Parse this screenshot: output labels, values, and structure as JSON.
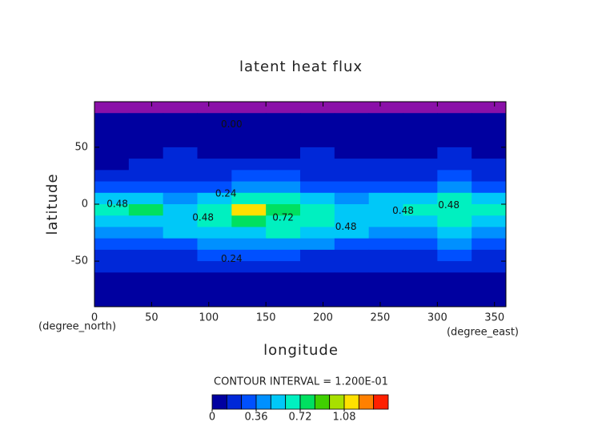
{
  "chart_data": {
    "type": "contour",
    "title": "latent heat flux",
    "x_label": "longitude",
    "y_label": "latitude",
    "x_units": "(degree_east)",
    "y_units": "(degree_north)",
    "note": "CONTOUR INTERVAL = 1.200E-01",
    "xlim": [
      0,
      360
    ],
    "ylim": [
      -90,
      90
    ],
    "xticks": [
      0,
      50,
      100,
      150,
      200,
      250,
      300,
      350
    ],
    "yticks": [
      -50,
      0,
      50
    ],
    "x": [
      15,
      45,
      75,
      105,
      135,
      165,
      195,
      225,
      255,
      285,
      315,
      345
    ],
    "y": [
      85,
      75,
      65,
      55,
      45,
      35,
      25,
      15,
      5,
      -5,
      -15,
      -25,
      -35,
      -45,
      -55,
      -65,
      -75,
      -85
    ],
    "z": [
      [
        -0.02,
        -0.02,
        -0.02,
        -0.02,
        -0.02,
        -0.02,
        -0.02,
        -0.02,
        -0.02,
        -0.02,
        -0.02,
        -0.02
      ],
      [
        0.03,
        0.02,
        0.04,
        0.05,
        0.05,
        0.04,
        0.03,
        0.04,
        0.05,
        0.02,
        0.03,
        0.04
      ],
      [
        0.06,
        0.07,
        0.08,
        0.09,
        0.08,
        0.07,
        0.08,
        0.09,
        0.08,
        0.07,
        0.06,
        0.07
      ],
      [
        0.09,
        0.1,
        0.11,
        0.1,
        0.09,
        0.1,
        0.11,
        0.1,
        0.09,
        0.1,
        0.11,
        0.1
      ],
      [
        0.1,
        0.11,
        0.12,
        0.11,
        0.1,
        0.11,
        0.12,
        0.11,
        0.1,
        0.11,
        0.12,
        0.11
      ],
      [
        0.11,
        0.13,
        0.14,
        0.15,
        0.16,
        0.14,
        0.13,
        0.15,
        0.13,
        0.12,
        0.14,
        0.13
      ],
      [
        0.2,
        0.22,
        0.18,
        0.2,
        0.26,
        0.25,
        0.22,
        0.2,
        0.19,
        0.22,
        0.25,
        0.23
      ],
      [
        0.3,
        0.34,
        0.28,
        0.33,
        0.38,
        0.36,
        0.32,
        0.3,
        0.29,
        0.33,
        0.37,
        0.35
      ],
      [
        0.52,
        0.58,
        0.45,
        0.55,
        0.65,
        0.62,
        0.5,
        0.46,
        0.49,
        0.55,
        0.6,
        0.57
      ],
      [
        0.6,
        0.74,
        0.55,
        0.7,
        1.1,
        0.8,
        0.62,
        0.54,
        0.58,
        0.66,
        0.7,
        0.64
      ],
      [
        0.5,
        0.56,
        0.52,
        0.62,
        0.75,
        0.7,
        0.6,
        0.55,
        0.52,
        0.58,
        0.62,
        0.55
      ],
      [
        0.42,
        0.46,
        0.48,
        0.52,
        0.58,
        0.6,
        0.55,
        0.5,
        0.44,
        0.46,
        0.48,
        0.45
      ],
      [
        0.3,
        0.32,
        0.34,
        0.38,
        0.4,
        0.38,
        0.36,
        0.34,
        0.3,
        0.28,
        0.36,
        0.32
      ],
      [
        0.2,
        0.18,
        0.22,
        0.26,
        0.28,
        0.25,
        0.22,
        0.2,
        0.18,
        0.19,
        0.26,
        0.22
      ],
      [
        0.13,
        0.14,
        0.15,
        0.16,
        0.15,
        0.14,
        0.13,
        0.14,
        0.13,
        0.14,
        0.15,
        0.14
      ],
      [
        0.09,
        0.1,
        0.11,
        0.1,
        0.09,
        0.1,
        0.11,
        0.1,
        0.09,
        0.1,
        0.11,
        0.1
      ],
      [
        0.06,
        0.05,
        0.07,
        0.06,
        0.05,
        0.06,
        0.07,
        0.06,
        0.05,
        0.06,
        0.07,
        0.06
      ],
      [
        0.04,
        0.05,
        0.04,
        0.05,
        0.04,
        0.05,
        0.04,
        0.05,
        0.04,
        0.05,
        0.04,
        0.05
      ]
    ],
    "levels": [
      0,
      0.12,
      0.24,
      0.36,
      0.48,
      0.6,
      0.72,
      0.84,
      0.96,
      1.08,
      1.2,
      1.32,
      1.44
    ],
    "colors": [
      "#0000a0",
      "#0028d8",
      "#0050ff",
      "#0090ff",
      "#00c8f8",
      "#00f0c0",
      "#00e060",
      "#40d000",
      "#a8e000",
      "#ffe000",
      "#ff8000",
      "#ff2000"
    ],
    "under_color": "#8a10a8",
    "colorbar_ticks": [
      0,
      0.36,
      0.72,
      1.08
    ],
    "contour_labels": [
      {
        "lon": 120,
        "lat": 70,
        "label": "0.00"
      },
      {
        "lon": 115,
        "lat": 9,
        "label": "0.24"
      },
      {
        "lon": 20,
        "lat": 0,
        "label": "0.48"
      },
      {
        "lon": 95,
        "lat": -12,
        "label": "0.48"
      },
      {
        "lon": 165,
        "lat": -12,
        "label": "0.72"
      },
      {
        "lon": 220,
        "lat": -20,
        "label": "0.48"
      },
      {
        "lon": 270,
        "lat": -6,
        "label": "0.48"
      },
      {
        "lon": 310,
        "lat": -1,
        "label": "0.48"
      },
      {
        "lon": 120,
        "lat": -48,
        "label": "0.24"
      }
    ]
  }
}
